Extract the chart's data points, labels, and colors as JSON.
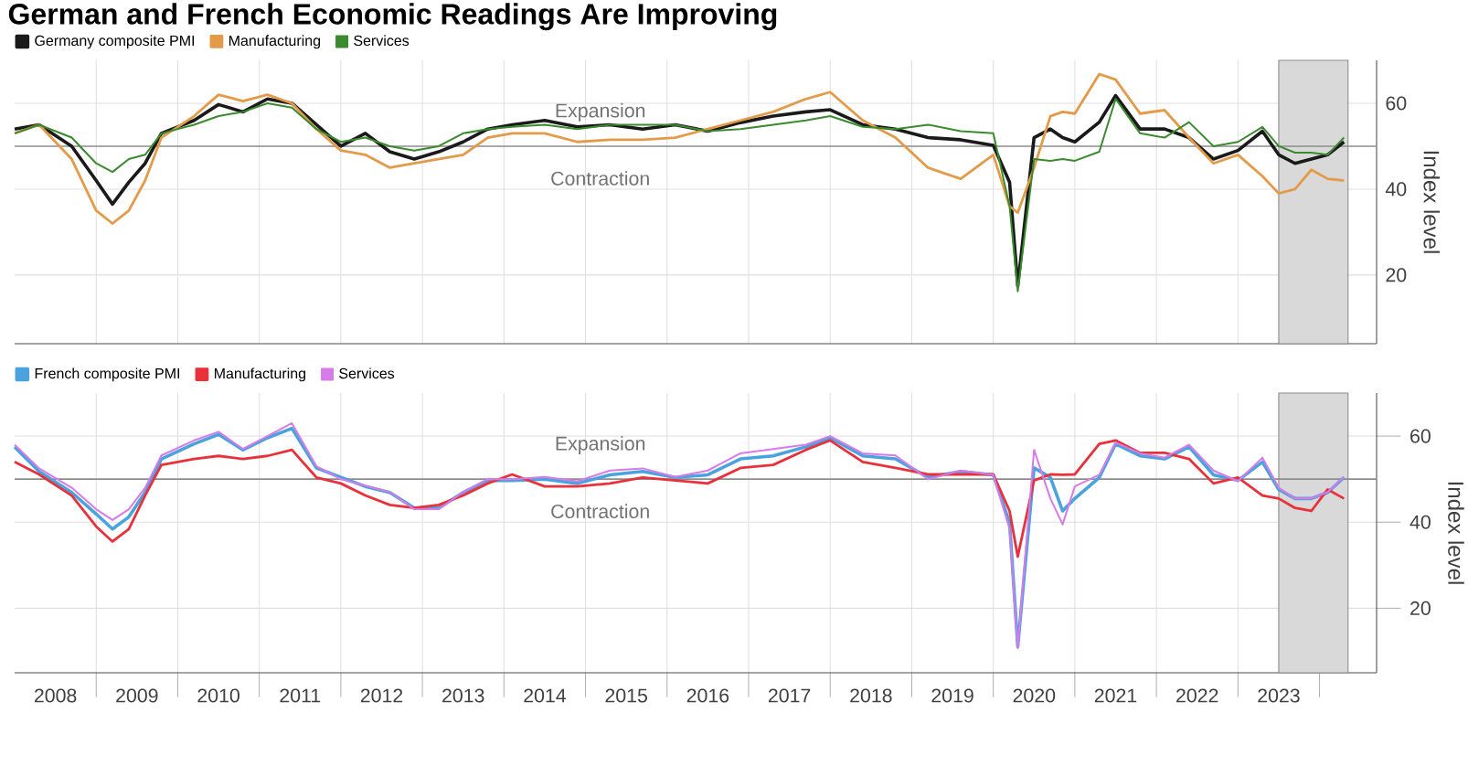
{
  "chart_data": [
    {
      "type": "line",
      "title": "German and French Economic Readings Are Improving",
      "legend": "top left",
      "grid": true,
      "marker": "none",
      "line_style": "solid",
      "ylabel": "Index level",
      "tick_labels": "y",
      "x": [
        2008.0,
        2008.3,
        2008.7,
        2009.0,
        2009.2,
        2009.4,
        2009.6,
        2009.8,
        2010.2,
        2010.5,
        2010.8,
        2011.1,
        2011.4,
        2011.7,
        2012.0,
        2012.3,
        2012.6,
        2012.9,
        2013.2,
        2013.5,
        2013.8,
        2014.1,
        2014.5,
        2014.9,
        2015.3,
        2015.7,
        2016.1,
        2016.5,
        2016.9,
        2017.3,
        2017.7,
        2018.0,
        2018.4,
        2018.8,
        2019.2,
        2019.6,
        2020.0,
        2020.2,
        2020.3,
        2020.5,
        2020.7,
        2020.85,
        2021.0,
        2021.3,
        2021.5,
        2021.8,
        2022.1,
        2022.4,
        2022.7,
        2023.0,
        2023.3,
        2023.5,
        2023.7,
        2023.9,
        2024.1,
        2024.3
      ],
      "series": [
        {
          "name": "Germany composite PMI",
          "color": "#1a1a1a",
          "values": [
            54,
            55,
            50,
            42,
            36.5,
            41.6,
            46,
            53,
            56,
            59.7,
            58,
            61,
            60,
            55,
            50,
            53,
            48.7,
            47,
            48.7,
            51,
            54,
            55,
            56,
            54.5,
            55,
            54,
            55,
            53.5,
            55.5,
            57,
            58,
            58.5,
            55,
            54,
            52,
            51.5,
            50.2,
            41.6,
            17.4,
            52,
            54,
            52,
            51,
            55.6,
            61.8,
            54,
            54,
            52,
            47,
            49,
            53.5,
            48,
            46,
            47,
            48,
            51
          ]
        },
        {
          "name": "Manufacturing",
          "color": "#e39b4a",
          "values": [
            53,
            55,
            47,
            35,
            32,
            35,
            42,
            52,
            57,
            62,
            60.5,
            62,
            60,
            54,
            49,
            48,
            45,
            46,
            47,
            48,
            52,
            53,
            53,
            51,
            51.5,
            51.5,
            52,
            54,
            56,
            58,
            61,
            62.6,
            56,
            52,
            45,
            42.4,
            48,
            36,
            34.5,
            45,
            57,
            58,
            57.6,
            66.8,
            65.5,
            57.6,
            58.4,
            52,
            46,
            48,
            43,
            39,
            40,
            44.5,
            42.4,
            42
          ]
        },
        {
          "name": "Services",
          "color": "#3a8a2e",
          "values": [
            53,
            55,
            52,
            46,
            44,
            47,
            48,
            53,
            55,
            57,
            58,
            60,
            59,
            54,
            51,
            52,
            50,
            49,
            50,
            53,
            54,
            54.5,
            55,
            54,
            55,
            55,
            55,
            53.5,
            54,
            55,
            56,
            57,
            54.5,
            54,
            55,
            53.5,
            53,
            36,
            16.2,
            47,
            46.6,
            47,
            46.6,
            48.7,
            61,
            53,
            52,
            55.6,
            50,
            51,
            54.5,
            50,
            48.5,
            48.5,
            48,
            52
          ]
        }
      ],
      "xlim": [
        2008.0,
        2024.7
      ],
      "ylim": [
        4,
        70
      ],
      "yticks": [
        20,
        40,
        60
      ],
      "xticks": [
        {
          "value": 2009,
          "label": null
        },
        {
          "value": 2010,
          "label": null
        },
        {
          "value": 2011,
          "label": null
        },
        {
          "value": 2012,
          "label": null
        },
        {
          "value": 2013,
          "label": null
        },
        {
          "value": 2014,
          "label": null
        },
        {
          "value": 2015,
          "label": null
        },
        {
          "value": 2016,
          "label": null
        },
        {
          "value": 2017,
          "label": null
        },
        {
          "value": 2018,
          "label": null
        },
        {
          "value": 2019,
          "label": null
        },
        {
          "value": 2020,
          "label": null
        },
        {
          "value": 2021,
          "label": null
        },
        {
          "value": 2022,
          "label": null
        },
        {
          "value": 2023,
          "label": null
        },
        {
          "value": 2024,
          "label": null
        }
      ],
      "ref_lines": [
        {
          "axis": "y",
          "value": 50,
          "color": "#8c8c8c"
        }
      ],
      "bands": [
        {
          "axis": "x",
          "from": 2023.5,
          "to": 2024.35,
          "color": "#d9d9d9"
        }
      ],
      "annotations": [
        "Expansion",
        "Contraction"
      ]
    },
    {
      "type": "line",
      "legend": "top left",
      "grid": true,
      "marker": "none",
      "line_style": "solid",
      "ylabel": "Index level",
      "x": [
        2008.0,
        2008.3,
        2008.7,
        2009.0,
        2009.2,
        2009.4,
        2009.6,
        2009.8,
        2010.2,
        2010.5,
        2010.8,
        2011.1,
        2011.4,
        2011.7,
        2012.0,
        2012.3,
        2012.6,
        2012.9,
        2013.2,
        2013.5,
        2013.8,
        2014.1,
        2014.5,
        2014.9,
        2015.3,
        2015.7,
        2016.1,
        2016.5,
        2016.9,
        2017.3,
        2017.7,
        2018.0,
        2018.4,
        2018.8,
        2019.2,
        2019.6,
        2020.0,
        2020.2,
        2020.3,
        2020.5,
        2020.7,
        2020.85,
        2021.0,
        2021.3,
        2021.5,
        2021.8,
        2022.1,
        2022.4,
        2022.7,
        2023.0,
        2023.3,
        2023.5,
        2023.7,
        2023.9,
        2024.1,
        2024.3
      ],
      "series": [
        {
          "name": "French composite PMI",
          "color": "#4aa3df",
          "values": [
            57.5,
            51.8,
            46.9,
            41.9,
            38.4,
            41.2,
            46.9,
            54.7,
            58.2,
            60.4,
            56.8,
            59.6,
            61.8,
            52.6,
            50.4,
            48.3,
            46.9,
            43.3,
            43.3,
            46.9,
            49.7,
            49.7,
            50,
            49,
            51,
            51.8,
            50.4,
            51,
            54.7,
            55.4,
            57.5,
            59.6,
            55.4,
            54.7,
            50.4,
            51.8,
            51,
            39.8,
            11.1,
            52.6,
            50.4,
            42.6,
            45.5,
            50.4,
            58.2,
            55.4,
            54.7,
            57.5,
            51,
            49.7,
            54,
            47.6,
            45.5,
            45.5,
            46.9,
            50.4
          ]
        },
        {
          "name": "Manufacturing",
          "color": "#e8313a",
          "values": [
            54,
            51.1,
            46.2,
            39,
            35.5,
            38.4,
            46.2,
            53.3,
            54.7,
            55.4,
            54.7,
            55.4,
            56.8,
            50.4,
            49,
            46.2,
            44,
            43.3,
            44,
            46.2,
            49,
            51.1,
            48.3,
            48.3,
            49,
            50.4,
            49.7,
            49,
            52.6,
            53.3,
            56.8,
            59,
            54,
            52.6,
            51.1,
            51.1,
            51.1,
            42.6,
            32,
            49.7,
            51.1,
            51,
            51.1,
            58.2,
            59,
            56.1,
            56.1,
            54.7,
            49,
            50.4,
            46.2,
            45.5,
            43.3,
            42.6,
            47.6,
            45.5
          ]
        },
        {
          "name": "Services",
          "color": "#d67be8",
          "values": [
            58,
            52.5,
            48,
            43,
            40.5,
            43,
            48,
            55.5,
            59,
            61,
            57,
            60,
            63,
            53,
            50,
            48.5,
            47,
            43,
            43,
            47,
            50,
            50,
            50.5,
            49.5,
            52,
            52.5,
            50.5,
            52,
            56,
            57,
            58,
            60,
            56,
            55.5,
            50,
            52,
            51,
            38.4,
            10.7,
            56.8,
            45.5,
            39.5,
            48.3,
            51,
            58.5,
            56,
            55,
            58,
            52,
            49.5,
            55,
            48,
            45.5,
            45.5,
            47,
            50.5
          ]
        }
      ],
      "xlim": [
        2008.0,
        2024.7
      ],
      "ylim": [
        5,
        70
      ],
      "yticks": [
        20,
        40,
        60
      ],
      "xticks": [
        {
          "value": 2009,
          "label": null
        },
        {
          "value": 2010,
          "label": null
        },
        {
          "value": 2011,
          "label": null
        },
        {
          "value": 2012,
          "label": null
        },
        {
          "value": 2013,
          "label": null
        },
        {
          "value": 2014,
          "label": null
        },
        {
          "value": 2015,
          "label": null
        },
        {
          "value": 2016,
          "label": null
        },
        {
          "value": 2017,
          "label": null
        },
        {
          "value": 2018,
          "label": null
        },
        {
          "value": 2019,
          "label": null
        },
        {
          "value": 2020,
          "label": null
        },
        {
          "value": 2021,
          "label": null
        },
        {
          "value": 2022,
          "label": null
        },
        {
          "value": 2023,
          "label": null
        },
        {
          "value": 2024,
          "label": null
        },
        {
          "value": 2008.5,
          "label": "2008"
        },
        {
          "value": 2009.5,
          "label": "2009"
        },
        {
          "value": 2010.5,
          "label": "2010"
        },
        {
          "value": 2011.5,
          "label": "2011"
        },
        {
          "value": 2012.5,
          "label": "2012"
        },
        {
          "value": 2013.5,
          "label": "2013"
        },
        {
          "value": 2014.5,
          "label": "2014"
        },
        {
          "value": 2015.5,
          "label": "2015"
        },
        {
          "value": 2016.5,
          "label": "2016"
        },
        {
          "value": 2017.5,
          "label": "2017"
        },
        {
          "value": 2018.5,
          "label": "2018"
        },
        {
          "value": 2019.5,
          "label": "2019"
        },
        {
          "value": 2020.5,
          "label": "2020"
        },
        {
          "value": 2021.5,
          "label": "2021"
        },
        {
          "value": 2022.5,
          "label": "2022"
        },
        {
          "value": 2023.5,
          "label": "2023"
        }
      ],
      "ref_lines": [
        {
          "axis": "y",
          "value": 50,
          "color": "#8c8c8c"
        }
      ],
      "bands": [
        {
          "axis": "x",
          "from": 2023.5,
          "to": 2024.35,
          "color": "#d9d9d9"
        }
      ],
      "annotations": [
        "Expansion",
        "Contraction"
      ]
    }
  ]
}
